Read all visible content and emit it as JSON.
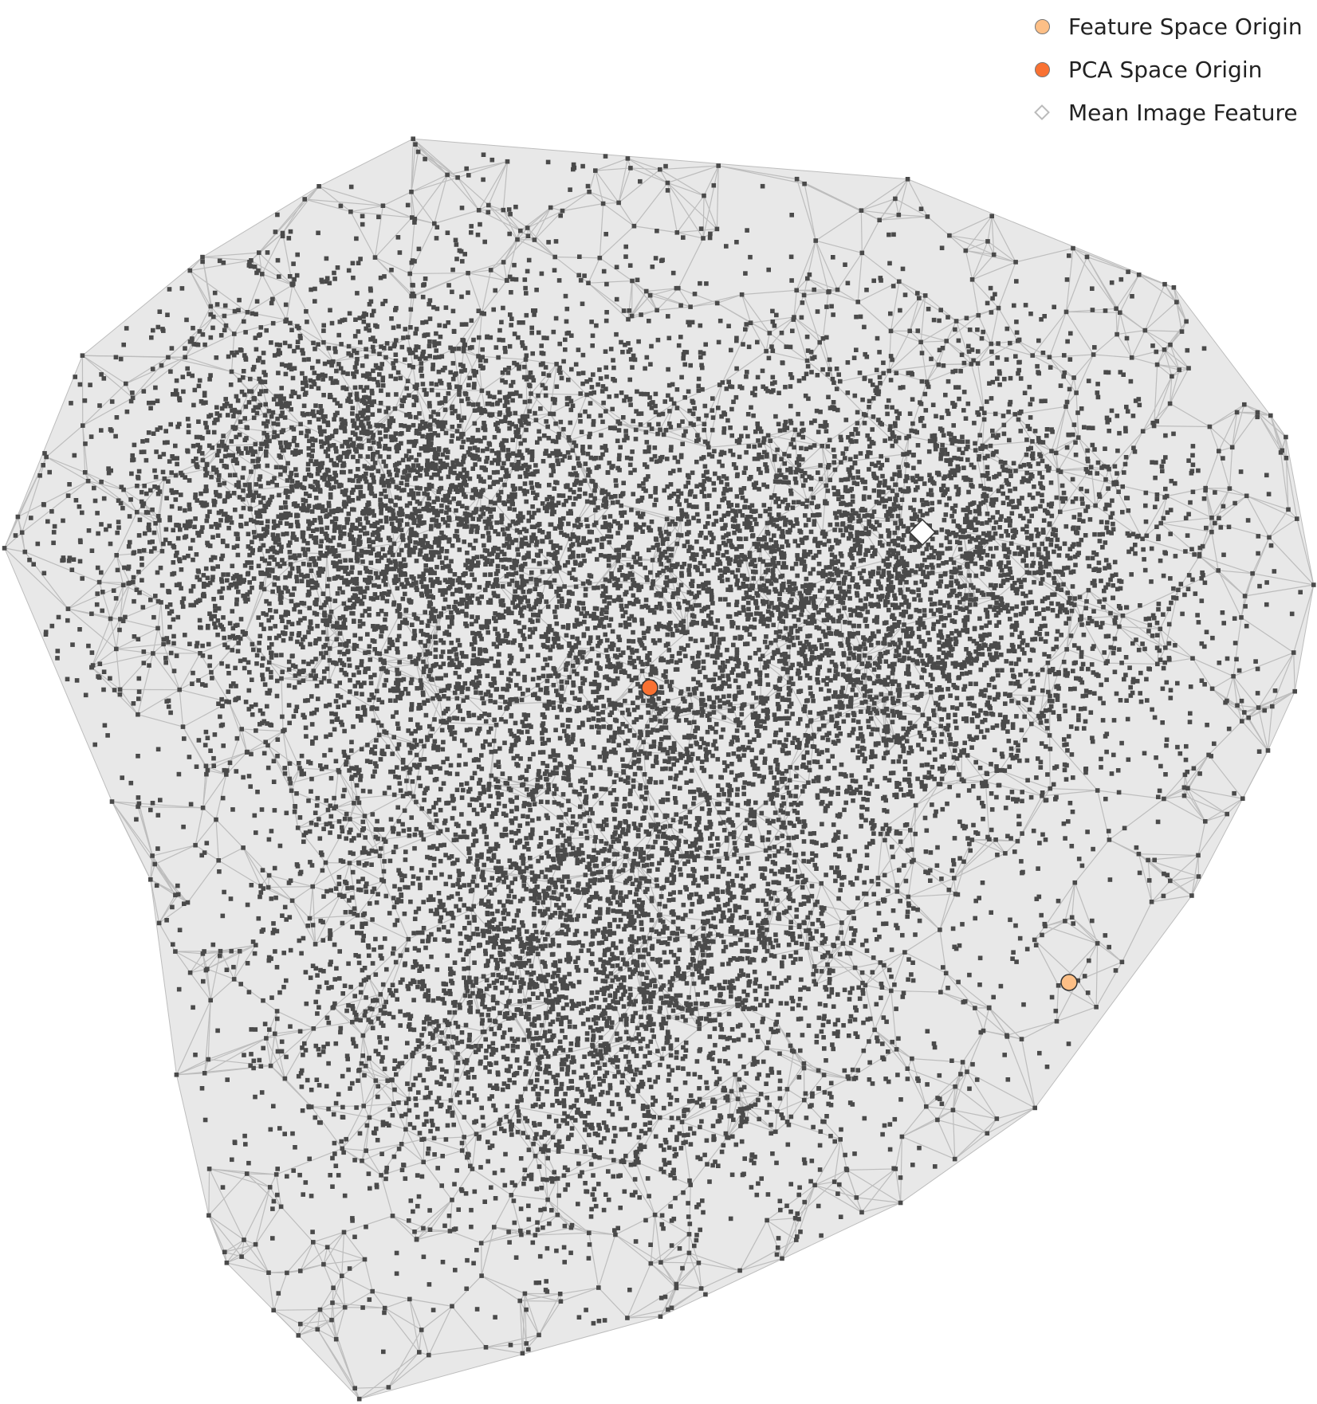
{
  "chart_data": {
    "type": "scatter",
    "title": "",
    "xlabel": "",
    "ylabel": "",
    "axes_visible": false,
    "grid": false,
    "legend_position": "top-right",
    "description_of_marks": "dense 2D scatter of points with convex hull and triangulation mesh",
    "colors": {
      "points": "#4a4a4a",
      "hull_fill": "#e8e8e8",
      "mesh_lines": "#bdbdbd",
      "feature_space_origin": "#fdbf86",
      "pca_space_origin": "#f97132",
      "mean_image_feature": "#ffffff"
    },
    "legend": [
      {
        "label": "Feature Space Origin",
        "marker": "circle",
        "color": "#fdbf86"
      },
      {
        "label": "PCA Space Origin",
        "marker": "circle",
        "color": "#f97132"
      },
      {
        "label": "Mean Image Feature",
        "marker": "diamond",
        "color": "#ffffff"
      }
    ]
  }
}
